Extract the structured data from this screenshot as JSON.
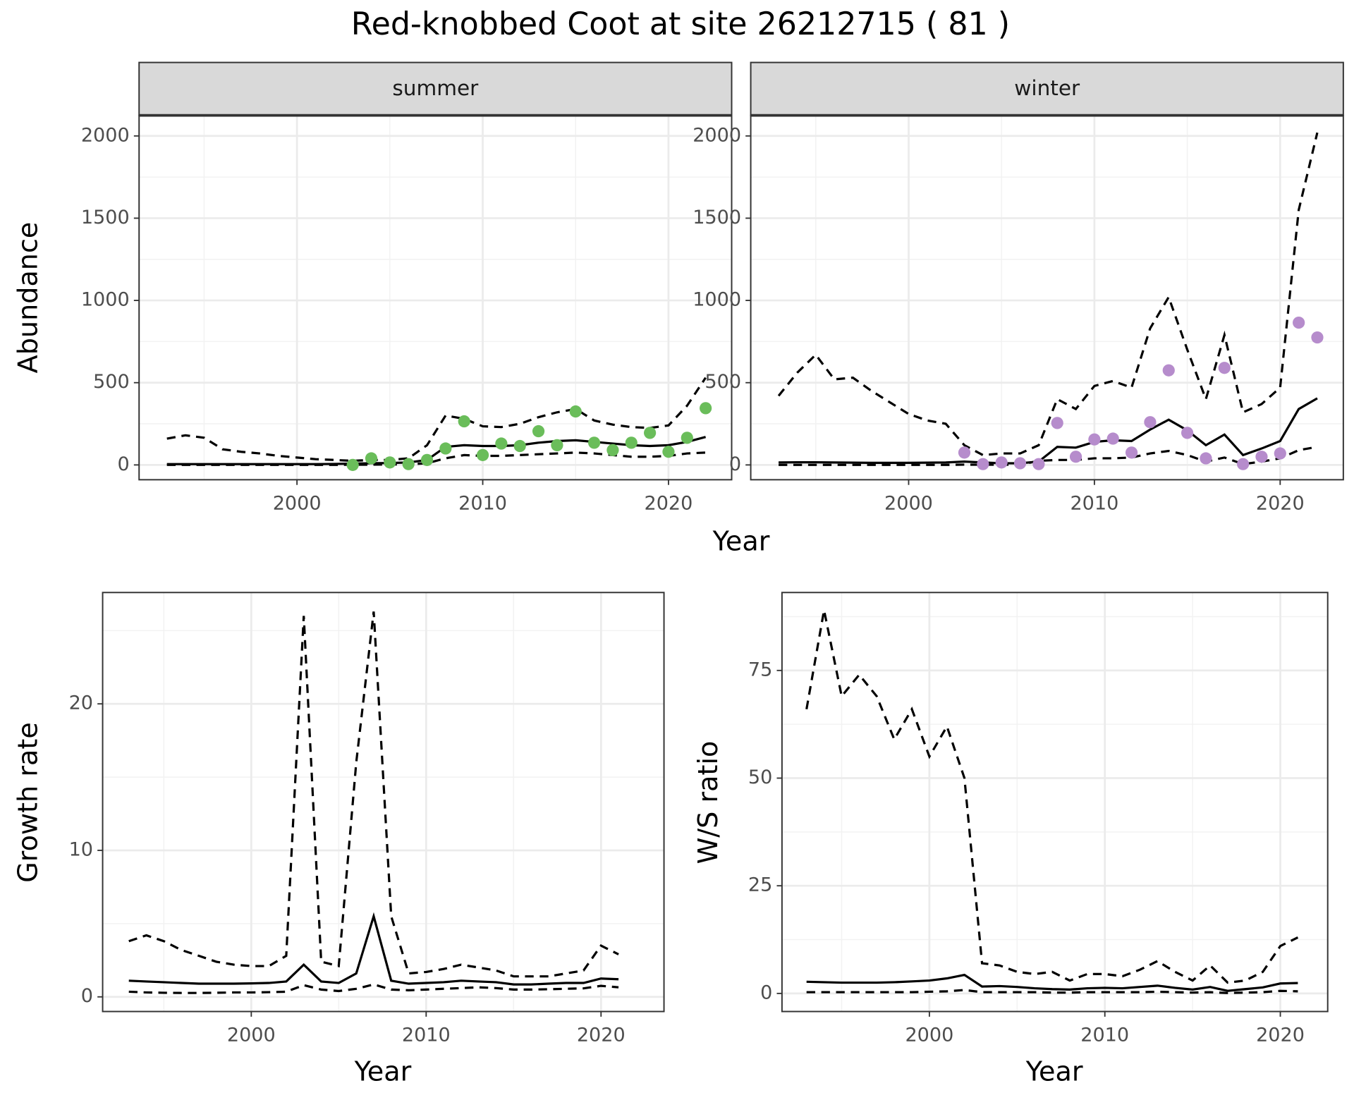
{
  "title": "Red-knobbed Coot at site 26212715 ( 81 )",
  "chart_data": [
    {
      "type": "line",
      "title": "summer",
      "xlabel": "Year",
      "ylabel": "Abundance",
      "x": [
        1993,
        1994,
        1995,
        1996,
        1997,
        1998,
        1999,
        2000,
        2001,
        2002,
        2003,
        2004,
        2005,
        2006,
        2007,
        2008,
        2009,
        2010,
        2011,
        2012,
        2013,
        2014,
        2015,
        2016,
        2017,
        2018,
        2019,
        2020,
        2021,
        2022
      ],
      "series": [
        {
          "style": "solid",
          "color": "#000000",
          "values": [
            5,
            5,
            5,
            5,
            5,
            5,
            5,
            5,
            5,
            6,
            8,
            10,
            12,
            15,
            30,
            110,
            120,
            115,
            115,
            120,
            135,
            145,
            150,
            140,
            130,
            120,
            115,
            120,
            140,
            170
          ]
        },
        {
          "style": "dashed",
          "color": "#000000",
          "values": [
            160,
            180,
            165,
            95,
            80,
            70,
            55,
            45,
            35,
            30,
            25,
            30,
            30,
            40,
            120,
            300,
            280,
            235,
            230,
            250,
            290,
            320,
            340,
            270,
            245,
            230,
            225,
            240,
            360,
            530
          ]
        },
        {
          "style": "dashed",
          "color": "#000000",
          "values": [
            0,
            0,
            0,
            0,
            0,
            0,
            0,
            0,
            0,
            0,
            1,
            2,
            3,
            4,
            10,
            40,
            60,
            55,
            55,
            60,
            65,
            70,
            75,
            70,
            60,
            50,
            50,
            55,
            70,
            75
          ]
        },
        {
          "style": "points",
          "color": "#6abd5a",
          "values": [
            null,
            null,
            null,
            null,
            null,
            null,
            null,
            null,
            null,
            null,
            0,
            40,
            15,
            5,
            30,
            100,
            265,
            60,
            130,
            115,
            205,
            120,
            325,
            135,
            90,
            135,
            195,
            80,
            165,
            345
          ]
        }
      ],
      "xlim": [
        1991.5,
        2023.4
      ],
      "ylim": [
        -90,
        2125
      ],
      "xticks": [
        2000,
        2010,
        2020
      ],
      "yticks": [
        0,
        500,
        1000,
        1500,
        2000
      ],
      "xminor": [
        1995,
        2005,
        2015
      ],
      "yminor": [
        250,
        750,
        1250,
        1750
      ],
      "grid": true
    },
    {
      "type": "line",
      "title": "winter",
      "x": [
        1993,
        1994,
        1995,
        1996,
        1997,
        1998,
        1999,
        2000,
        2001,
        2002,
        2003,
        2004,
        2005,
        2006,
        2007,
        2008,
        2009,
        2010,
        2011,
        2012,
        2013,
        2014,
        2015,
        2016,
        2017,
        2018,
        2019,
        2020,
        2021,
        2022
      ],
      "series": [
        {
          "style": "solid",
          "color": "#000000",
          "values": [
            15,
            16,
            16,
            15,
            14,
            13,
            13,
            13,
            14,
            15,
            20,
            15,
            10,
            10,
            20,
            110,
            105,
            140,
            150,
            145,
            215,
            275,
            210,
            120,
            185,
            60,
            100,
            145,
            340,
            405
          ]
        },
        {
          "style": "dashed",
          "color": "#000000",
          "values": [
            420,
            560,
            670,
            520,
            530,
            450,
            380,
            310,
            270,
            250,
            120,
            60,
            70,
            70,
            120,
            400,
            340,
            480,
            510,
            470,
            830,
            1020,
            700,
            400,
            790,
            320,
            370,
            470,
            1550,
            2020
          ]
        },
        {
          "style": "dashed",
          "color": "#000000",
          "values": [
            0,
            0,
            0,
            0,
            0,
            0,
            0,
            0,
            0,
            0,
            2,
            1,
            1,
            1,
            25,
            30,
            30,
            40,
            40,
            45,
            70,
            85,
            60,
            20,
            45,
            5,
            20,
            40,
            90,
            110
          ]
        },
        {
          "style": "points",
          "color": "#b68ccc",
          "values": [
            null,
            null,
            null,
            null,
            null,
            null,
            null,
            null,
            null,
            null,
            75,
            5,
            15,
            10,
            5,
            255,
            50,
            155,
            160,
            75,
            260,
            575,
            195,
            40,
            590,
            5,
            50,
            70,
            865,
            775
          ]
        }
      ],
      "xlim": [
        1991.5,
        2023.4
      ],
      "ylim": [
        -90,
        2125
      ],
      "xticks": [
        2000,
        2010,
        2020
      ],
      "yticks": [
        0,
        500,
        1000,
        1500,
        2000
      ],
      "xminor": [
        1995,
        2005,
        2015
      ],
      "yminor": [
        250,
        750,
        1250,
        1750
      ],
      "grid": true
    },
    {
      "type": "line",
      "xlabel": "Year",
      "ylabel": "Growth rate",
      "x": [
        1993,
        1994,
        1995,
        1996,
        1997,
        1998,
        1999,
        2000,
        2001,
        2002,
        2003,
        2004,
        2005,
        2006,
        2007,
        2008,
        2009,
        2010,
        2011,
        2012,
        2013,
        2014,
        2015,
        2016,
        2017,
        2018,
        2019,
        2020,
        2021
      ],
      "series": [
        {
          "style": "solid",
          "color": "#000000",
          "values": [
            1.1,
            1.05,
            1.0,
            0.95,
            0.9,
            0.9,
            0.9,
            0.92,
            0.95,
            1.05,
            2.2,
            1.05,
            0.95,
            1.6,
            5.5,
            1.1,
            0.9,
            0.95,
            1.0,
            1.1,
            1.05,
            1.0,
            0.85,
            0.85,
            0.9,
            0.95,
            0.95,
            1.25,
            1.2
          ]
        },
        {
          "style": "dashed",
          "color": "#000000",
          "values": [
            3.8,
            4.2,
            3.8,
            3.2,
            2.8,
            2.4,
            2.2,
            2.1,
            2.1,
            2.8,
            26,
            2.4,
            2.1,
            16,
            26.3,
            5.5,
            1.6,
            1.7,
            1.9,
            2.2,
            2.0,
            1.8,
            1.4,
            1.4,
            1.4,
            1.6,
            1.8,
            3.5,
            2.9
          ]
        },
        {
          "style": "dashed",
          "color": "#000000",
          "values": [
            0.35,
            0.3,
            0.28,
            0.27,
            0.27,
            0.28,
            0.3,
            0.3,
            0.32,
            0.35,
            0.8,
            0.5,
            0.4,
            0.55,
            0.85,
            0.5,
            0.45,
            0.5,
            0.55,
            0.6,
            0.65,
            0.6,
            0.5,
            0.5,
            0.52,
            0.55,
            0.58,
            0.75,
            0.65
          ]
        }
      ],
      "xlim": [
        1991.5,
        2023.6
      ],
      "ylim": [
        -1,
        27.6
      ],
      "xticks": [
        2000,
        2010,
        2020
      ],
      "yticks": [
        0,
        10,
        20
      ],
      "xminor": [
        1995,
        2005,
        2015
      ],
      "yminor": [
        5,
        15,
        25
      ],
      "grid": true
    },
    {
      "type": "line",
      "xlabel": "Year",
      "ylabel": "W/S ratio",
      "x": [
        1993,
        1994,
        1995,
        1996,
        1997,
        1998,
        1999,
        2000,
        2001,
        2002,
        2003,
        2004,
        2005,
        2006,
        2007,
        2008,
        2009,
        2010,
        2011,
        2012,
        2013,
        2014,
        2015,
        2016,
        2017,
        2018,
        2019,
        2020,
        2021
      ],
      "series": [
        {
          "style": "solid",
          "color": "#000000",
          "values": [
            2.7,
            2.6,
            2.5,
            2.5,
            2.5,
            2.6,
            2.8,
            3.0,
            3.5,
            4.3,
            1.6,
            1.7,
            1.5,
            1.2,
            1.0,
            0.9,
            1.2,
            1.3,
            1.2,
            1.5,
            1.8,
            1.3,
            0.9,
            1.5,
            0.6,
            1.0,
            1.4,
            2.3,
            2.4
          ]
        },
        {
          "style": "dashed",
          "color": "#000000",
          "values": [
            66,
            89,
            69,
            74,
            69,
            59,
            66,
            55,
            62,
            50,
            7,
            6.5,
            5,
            4.5,
            5,
            3,
            4.5,
            4.5,
            4,
            5.5,
            7.5,
            5,
            3,
            6.5,
            2.5,
            3,
            5,
            11,
            13
          ]
        },
        {
          "style": "dashed",
          "color": "#000000",
          "values": [
            0.3,
            0.3,
            0.3,
            0.3,
            0.3,
            0.3,
            0.3,
            0.4,
            0.5,
            0.8,
            0.3,
            0.3,
            0.3,
            0.3,
            0.2,
            0.2,
            0.3,
            0.3,
            0.3,
            0.3,
            0.4,
            0.3,
            0.2,
            0.3,
            0.1,
            0.2,
            0.3,
            0.6,
            0.5
          ]
        }
      ],
      "xlim": [
        1991.6,
        2022.7
      ],
      "ylim": [
        -4.2,
        93.1
      ],
      "xticks": [
        2000,
        2010,
        2020
      ],
      "yticks": [
        0,
        25,
        50,
        75
      ],
      "xminor": [
        1995,
        2005,
        2015
      ],
      "yminor": [
        12.5,
        37.5,
        62.5,
        87.5
      ],
      "grid": true
    }
  ]
}
